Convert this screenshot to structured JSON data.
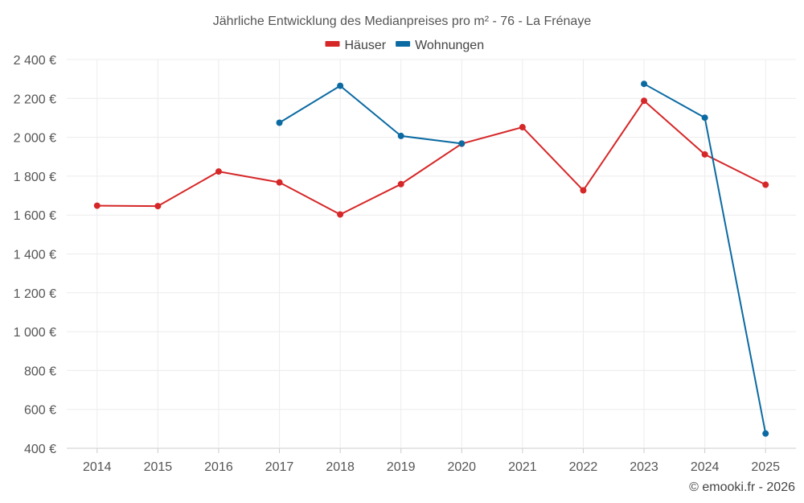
{
  "chart_data": {
    "type": "line",
    "title": "Jährliche Entwicklung des Medianpreises pro m² - 76 - La Frénaye",
    "categories": [
      "2014",
      "2015",
      "2016",
      "2017",
      "2018",
      "2019",
      "2020",
      "2021",
      "2022",
      "2023",
      "2024",
      "2025"
    ],
    "ylim": [
      400,
      2400
    ],
    "yticks": [
      400,
      600,
      800,
      1000,
      1200,
      1400,
      1600,
      1800,
      2000,
      2200,
      2400
    ],
    "ytick_labels": [
      "400 €",
      "600 €",
      "800 €",
      "1 000 €",
      "1 200 €",
      "1 400 €",
      "1 600 €",
      "1 800 €",
      "2 000 €",
      "2 200 €",
      "2 400 €"
    ],
    "legend_position": "top-center",
    "grid": true,
    "series": [
      {
        "name": "Häuser",
        "color": "#d62728",
        "values": [
          1648,
          1646,
          1824,
          1768,
          1603,
          1759,
          1967,
          2052,
          1727,
          2188,
          1912,
          1756
        ]
      },
      {
        "name": "Wohnungen",
        "color": "#0b6aa2",
        "values": [
          null,
          null,
          null,
          2075,
          2265,
          2007,
          1968,
          null,
          null,
          2275,
          2101,
          476
        ]
      }
    ]
  },
  "credit": "© emooki.fr - 2026"
}
